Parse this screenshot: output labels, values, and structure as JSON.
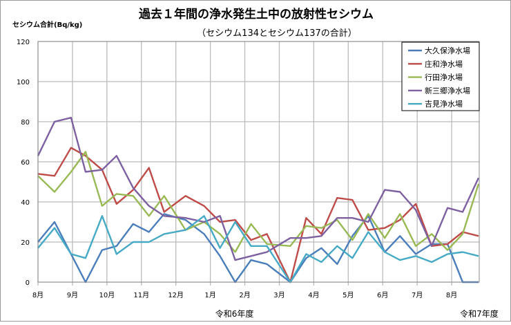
{
  "chart_data": {
    "type": "line",
    "title": "過去１年間の浄水発生土中の放射性セシウム",
    "subtitle": "（セシウム134とセシウム137の合計）",
    "ylabel": "セシウム合計(Bq/kg)",
    "xlabel": "",
    "ylim": [
      0,
      120
    ],
    "yticks": [
      0,
      20,
      40,
      60,
      80,
      100,
      120
    ],
    "xlim": [
      0,
      12.8
    ],
    "xtick_labels": [
      "8月",
      "9月",
      "10月",
      "11月",
      "12月",
      "1月",
      "2月",
      "3月",
      "4月",
      "5月",
      "6月",
      "7月",
      "8月"
    ],
    "period_labels": [
      {
        "text": "令和6年度",
        "x": 5.7
      },
      {
        "text": "令和7年度",
        "x": 12.8
      }
    ],
    "grid": true,
    "legend_position": "top-right",
    "x": [
      0,
      0.48,
      0.96,
      1.38,
      1.86,
      2.28,
      2.76,
      3.22,
      3.66,
      4.28,
      4.82,
      5.28,
      5.72,
      6.18,
      6.64,
      7.32,
      7.78,
      8.22,
      8.68,
      9.12,
      9.58,
      10.06,
      10.5,
      10.96,
      11.42,
      11.88,
      12.32,
      12.78
    ],
    "series": [
      {
        "name": "大久保浄水場",
        "color": "#4a7ebb",
        "values": [
          20,
          30,
          14,
          0,
          16,
          18,
          29,
          25,
          34,
          31,
          24,
          13,
          0,
          11,
          9,
          0,
          12,
          17,
          9,
          23,
          33,
          15,
          23,
          14,
          19,
          19,
          0,
          0
        ]
      },
      {
        "name": "庄和浄水場",
        "color": "#be4b48",
        "values": [
          54,
          53,
          67,
          63,
          56,
          39,
          46,
          57,
          35,
          43,
          38,
          30,
          31,
          21,
          24,
          0,
          32,
          24,
          42,
          41,
          26,
          27,
          31,
          39,
          18,
          19,
          25,
          23
        ]
      },
      {
        "name": "行田浄水場",
        "color": "#98b954",
        "values": [
          53,
          45,
          55,
          65,
          38,
          44,
          43,
          33,
          43,
          26,
          30,
          24,
          15,
          29,
          19,
          18,
          28,
          27,
          31,
          21,
          34,
          22,
          34,
          18,
          24,
          16,
          24,
          49
        ]
      },
      {
        "name": "新三郷浄水場",
        "color": "#7d60a0",
        "values": [
          63,
          80,
          82,
          55,
          56,
          63,
          47,
          38,
          33,
          32,
          30,
          33,
          11,
          13,
          15,
          22,
          22,
          23,
          32,
          32,
          30,
          46,
          45,
          36,
          18,
          37,
          35,
          52
        ]
      },
      {
        "name": "吉見浄水場",
        "color": "#46aac5",
        "values": [
          17,
          27,
          14,
          12,
          33,
          14,
          20,
          20,
          24,
          26,
          33,
          17,
          30,
          18,
          18,
          0,
          14,
          10,
          18,
          12,
          25,
          15,
          11,
          13,
          10,
          14,
          15,
          13
        ]
      }
    ]
  }
}
